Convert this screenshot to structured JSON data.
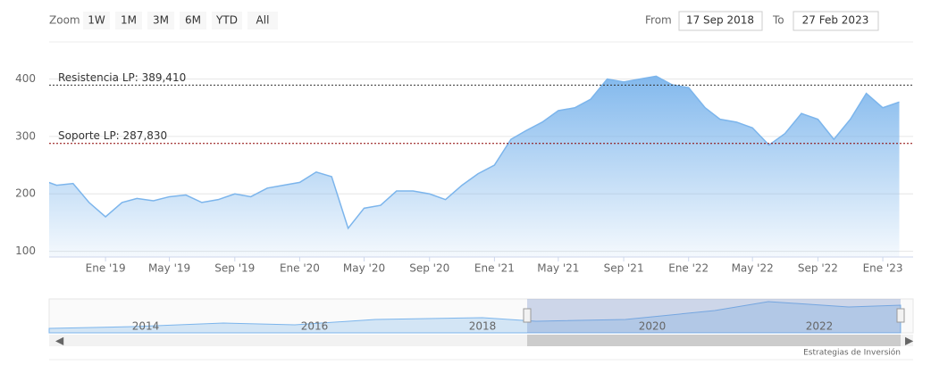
{
  "toolbar": {
    "zoom_label": "Zoom",
    "buttons": [
      "1W",
      "1M",
      "3M",
      "6M",
      "YTD",
      "All"
    ],
    "from_label": "From",
    "from": "17 Sep 2018",
    "to_label": "To",
    "to": "27 Feb 2023"
  },
  "chart_data": {
    "type": "area",
    "x": [
      "2018-09",
      "2018-10",
      "2018-11",
      "2018-12",
      "2019-01",
      "2019-02",
      "2019-03",
      "2019-04",
      "2019-05",
      "2019-06",
      "2019-07",
      "2019-08",
      "2019-09",
      "2019-10",
      "2019-11",
      "2019-12",
      "2020-01",
      "2020-02",
      "2020-03",
      "2020-04",
      "2020-05",
      "2020-06",
      "2020-07",
      "2020-08",
      "2020-09",
      "2020-10",
      "2020-11",
      "2020-12",
      "2021-01",
      "2021-02",
      "2021-03",
      "2021-04",
      "2021-05",
      "2021-06",
      "2021-07",
      "2021-08",
      "2021-09",
      "2021-10",
      "2021-11",
      "2021-12",
      "2022-01",
      "2022-02",
      "2022-03",
      "2022-04",
      "2022-05",
      "2022-06",
      "2022-07",
      "2022-08",
      "2022-09",
      "2022-10",
      "2022-11",
      "2022-12",
      "2023-01",
      "2023-02"
    ],
    "series": [
      {
        "color": "#7cb5ec",
        "values": [
          225,
          215,
          218,
          185,
          160,
          185,
          192,
          188,
          195,
          198,
          185,
          190,
          200,
          195,
          210,
          215,
          220,
          238,
          230,
          140,
          175,
          180,
          205,
          205,
          200,
          190,
          215,
          235,
          250,
          295,
          310,
          325,
          345,
          350,
          365,
          400,
          395,
          400,
          405,
          390,
          385,
          350,
          330,
          325,
          315,
          285,
          305,
          340,
          330,
          295,
          330,
          375,
          350,
          360
        ]
      }
    ],
    "xlim": [
      "2018-09-17",
      "2023-02-27"
    ],
    "xticks": [
      {
        "value": "2019-01",
        "label": "Ene '19"
      },
      {
        "value": "2019-05",
        "label": "May '19"
      },
      {
        "value": "2019-09",
        "label": "Sep '19"
      },
      {
        "value": "2020-01",
        "label": "Ene '20"
      },
      {
        "value": "2020-05",
        "label": "May '20"
      },
      {
        "value": "2020-09",
        "label": "Sep '20"
      },
      {
        "value": "2021-01",
        "label": "Ene '21"
      },
      {
        "value": "2021-05",
        "label": "May '21"
      },
      {
        "value": "2021-09",
        "label": "Sep '21"
      },
      {
        "value": "2022-01",
        "label": "Ene '22"
      },
      {
        "value": "2022-05",
        "label": "May '22"
      },
      {
        "value": "2022-09",
        "label": "Sep '22"
      },
      {
        "value": "2023-01",
        "label": "Ene '23"
      }
    ],
    "ylim": [
      90,
      460
    ],
    "yticks": [
      100,
      200,
      300,
      400
    ],
    "grid": true,
    "plot_lines": [
      {
        "value": 389.41,
        "label": "Resistencia LP: 389,410",
        "color": "#333333"
      },
      {
        "value": 287.83,
        "label": "Soporte LP: 287,830",
        "color": "#8b0000"
      }
    ]
  },
  "navigator": {
    "labels": [
      "2014",
      "2016",
      "2018",
      "2020",
      "2022"
    ]
  },
  "credits": "Estrategias de Inversión"
}
